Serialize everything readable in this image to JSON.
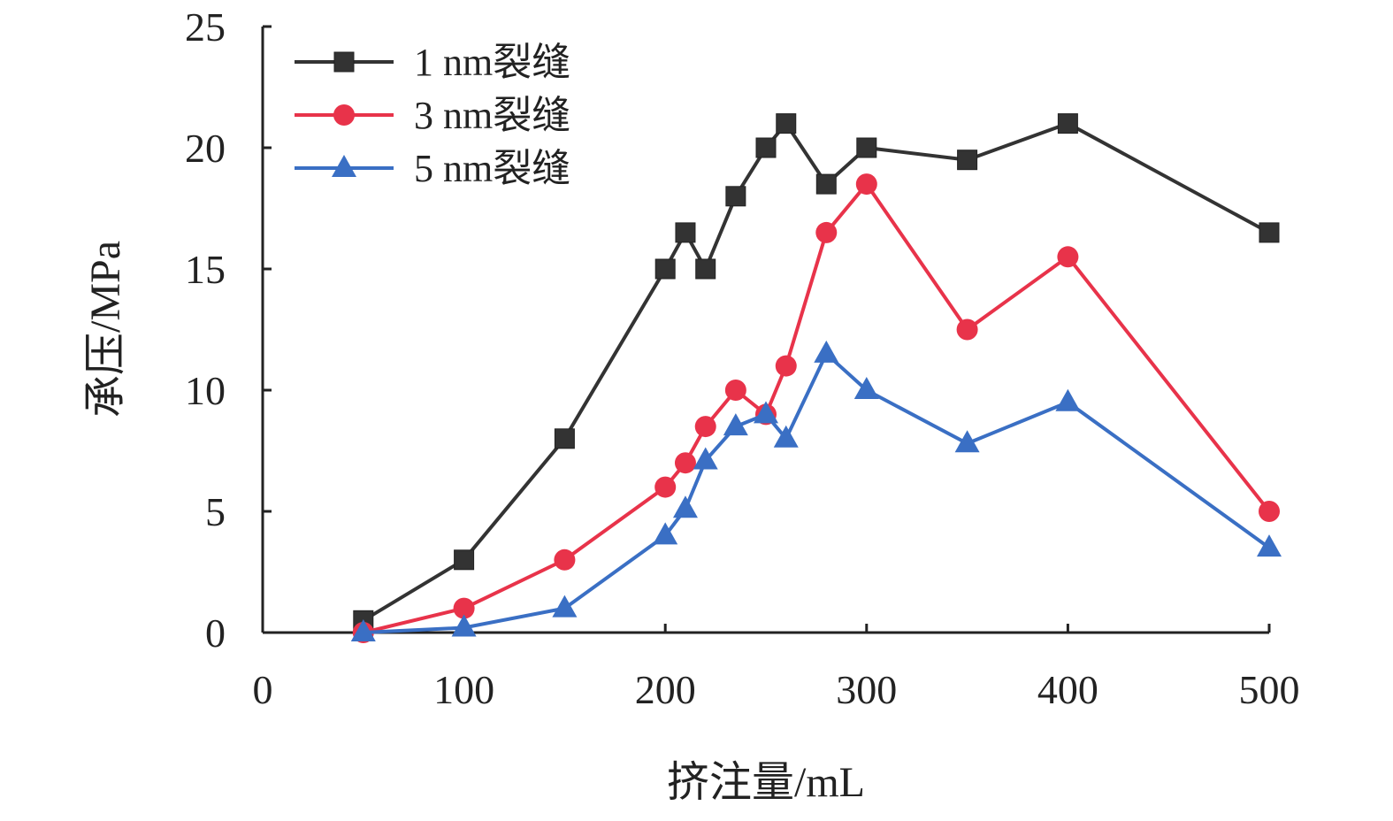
{
  "chart_data": {
    "type": "line",
    "xlabel": "挤注量/mL",
    "ylabel": "承压/MPa",
    "xlim": [
      0,
      500
    ],
    "ylim": [
      0,
      25
    ],
    "xticks": [
      "0",
      "100",
      "200",
      "300",
      "400",
      "500"
    ],
    "yticks": [
      "0",
      "5",
      "10",
      "15",
      "20",
      "25"
    ],
    "grid": false,
    "legend_position": "top-left",
    "series": [
      {
        "name": "1 nm裂缝",
        "color": "#333333",
        "marker": "square",
        "x": [
          50,
          100,
          150,
          200,
          210,
          220,
          235,
          250,
          260,
          280,
          300,
          350,
          400,
          500
        ],
        "y": [
          0.5,
          3,
          8,
          15,
          16.5,
          15,
          18,
          20,
          21,
          18.5,
          20,
          19.5,
          21,
          16.5
        ]
      },
      {
        "name": "3 nm裂缝",
        "color": "#e8334a",
        "marker": "circle",
        "x": [
          50,
          100,
          150,
          200,
          210,
          220,
          235,
          250,
          260,
          280,
          300,
          350,
          400,
          500
        ],
        "y": [
          0,
          1,
          3,
          6,
          7,
          8.5,
          10,
          9,
          11,
          16.5,
          18.5,
          12.5,
          15.5,
          5
        ]
      },
      {
        "name": "5 nm裂缝",
        "color": "#3a6fc4",
        "marker": "triangle",
        "x": [
          50,
          100,
          150,
          200,
          210,
          220,
          235,
          250,
          260,
          280,
          300,
          350,
          400,
          500
        ],
        "y": [
          0,
          0.2,
          1,
          4,
          5.1,
          7.1,
          8.5,
          9,
          8,
          11.5,
          10,
          7.8,
          9.5,
          3.5
        ]
      }
    ]
  }
}
